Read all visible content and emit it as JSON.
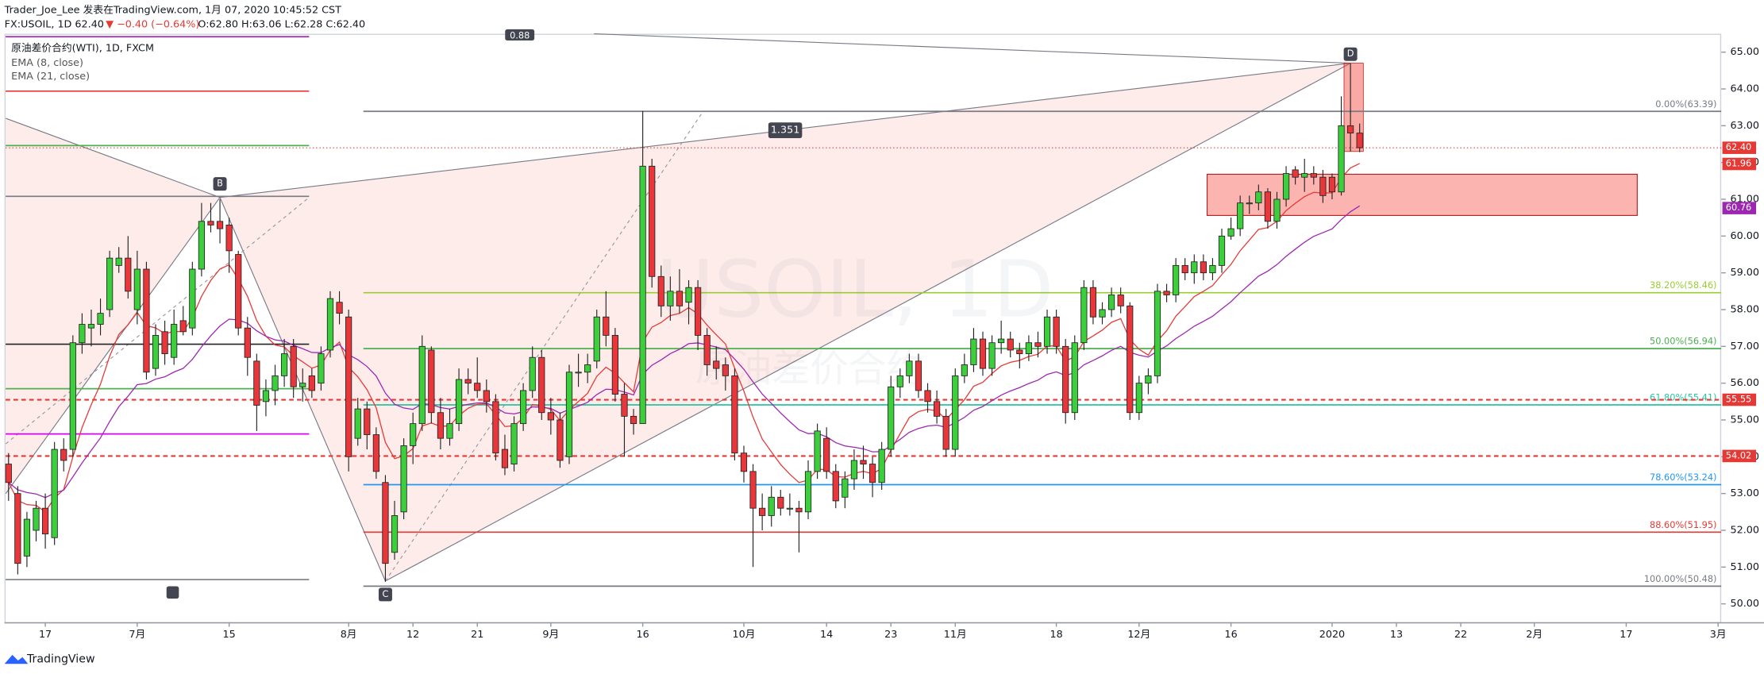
{
  "header": {
    "line1": "Trader_Joe_Lee 发表在TradingView.com, 1月 07, 2020 10:45:52 CST",
    "symbol": "FX:USOIL, 1D 62.40",
    "change": "▼ −0.40 (−0.64%)",
    "ohlc": "O:62.80 H:63.06 L:62.28 C:62.40"
  },
  "legend": [
    "原油差价合约(WTI), 1D, FXCM",
    "EMA (8, close)",
    "EMA (21, close)"
  ],
  "watermark": {
    "title": "USOIL, 1D",
    "subtitle": "原油差价合约"
  },
  "footer": "TradingView",
  "chart_data": {
    "type": "candlestick",
    "up_color": "#3ccf3c",
    "down_color": "#e8363a",
    "outline": "#222222",
    "candles": [
      [
        53.8,
        54.1,
        52.8,
        53.3
      ],
      [
        53.0,
        53.2,
        50.8,
        51.1
      ],
      [
        51.3,
        52.5,
        51.0,
        52.3
      ],
      [
        52.0,
        52.8,
        51.7,
        52.6
      ],
      [
        52.6,
        53.0,
        51.5,
        51.9
      ],
      [
        51.8,
        54.4,
        51.6,
        54.2
      ],
      [
        54.2,
        54.5,
        53.6,
        53.9
      ],
      [
        54.2,
        57.3,
        54.0,
        57.1
      ],
      [
        57.1,
        57.9,
        56.8,
        57.6
      ],
      [
        57.5,
        58.0,
        57.0,
        57.6
      ],
      [
        57.6,
        58.3,
        57.3,
        57.9
      ],
      [
        58.0,
        59.6,
        57.8,
        59.4
      ],
      [
        59.2,
        59.7,
        59.0,
        59.4
      ],
      [
        59.4,
        60.0,
        58.3,
        58.5
      ],
      [
        58.0,
        59.6,
        57.6,
        59.1
      ],
      [
        59.1,
        59.3,
        56.1,
        56.3
      ],
      [
        56.4,
        57.6,
        56.2,
        57.3
      ],
      [
        57.4,
        57.7,
        56.5,
        56.8
      ],
      [
        56.7,
        58.0,
        56.5,
        57.6
      ],
      [
        57.7,
        58.1,
        57.3,
        57.4
      ],
      [
        57.5,
        59.3,
        57.3,
        59.1
      ],
      [
        59.1,
        60.9,
        58.9,
        60.4
      ],
      [
        60.4,
        60.9,
        60.1,
        60.3
      ],
      [
        60.4,
        61.0,
        59.8,
        60.2
      ],
      [
        60.3,
        60.5,
        59.0,
        59.6
      ],
      [
        59.5,
        59.6,
        57.3,
        57.5
      ],
      [
        57.5,
        57.8,
        56.2,
        56.7
      ],
      [
        56.6,
        56.8,
        54.7,
        55.4
      ],
      [
        55.5,
        56.1,
        55.1,
        55.8
      ],
      [
        55.8,
        56.5,
        55.4,
        56.2
      ],
      [
        56.2,
        57.2,
        55.9,
        56.8
      ],
      [
        57.0,
        57.2,
        55.6,
        55.9
      ],
      [
        55.9,
        56.4,
        55.5,
        56.0
      ],
      [
        56.2,
        56.4,
        55.6,
        55.8
      ],
      [
        56.0,
        57.0,
        55.8,
        56.8
      ],
      [
        56.9,
        58.5,
        56.7,
        58.3
      ],
      [
        58.2,
        58.5,
        57.6,
        57.9
      ],
      [
        57.8,
        58.0,
        53.6,
        54.0
      ],
      [
        54.5,
        55.6,
        54.3,
        55.3
      ],
      [
        55.3,
        55.5,
        54.2,
        54.6
      ],
      [
        54.6,
        54.8,
        53.4,
        53.6
      ],
      [
        53.3,
        53.5,
        50.6,
        51.1
      ],
      [
        51.4,
        52.8,
        51.2,
        52.4
      ],
      [
        52.5,
        54.5,
        52.3,
        54.3
      ],
      [
        54.3,
        55.2,
        53.8,
        54.9
      ],
      [
        54.9,
        57.3,
        54.7,
        57.0
      ],
      [
        56.9,
        57.0,
        54.9,
        55.2
      ],
      [
        55.2,
        55.6,
        54.2,
        54.5
      ],
      [
        54.5,
        55.3,
        54.3,
        54.9
      ],
      [
        54.9,
        56.4,
        54.7,
        56.1
      ],
      [
        56.1,
        56.4,
        55.7,
        56.0
      ],
      [
        56.0,
        56.7,
        55.6,
        55.8
      ],
      [
        55.8,
        56.1,
        55.2,
        55.5
      ],
      [
        55.5,
        55.7,
        53.9,
        54.1
      ],
      [
        54.2,
        54.6,
        53.5,
        53.7
      ],
      [
        53.8,
        55.1,
        53.6,
        54.9
      ],
      [
        54.9,
        56.0,
        54.7,
        55.8
      ],
      [
        55.8,
        57.0,
        55.6,
        56.7
      ],
      [
        56.7,
        56.9,
        55.0,
        55.2
      ],
      [
        55.2,
        55.6,
        54.6,
        55.0
      ],
      [
        55.0,
        55.2,
        53.7,
        53.9
      ],
      [
        54.0,
        56.5,
        53.8,
        56.3
      ],
      [
        56.3,
        56.8,
        55.9,
        56.3
      ],
      [
        56.3,
        56.8,
        56.0,
        56.5
      ],
      [
        56.6,
        58.0,
        56.4,
        57.8
      ],
      [
        57.8,
        58.5,
        57.0,
        57.3
      ],
      [
        57.3,
        57.5,
        55.5,
        55.7
      ],
      [
        55.7,
        56.0,
        54.0,
        55.1
      ],
      [
        55.1,
        55.3,
        54.6,
        54.9
      ],
      [
        54.9,
        63.4,
        54.9,
        61.9
      ],
      [
        61.9,
        62.1,
        58.6,
        58.9
      ],
      [
        58.9,
        59.2,
        57.8,
        58.1
      ],
      [
        58.1,
        58.9,
        57.7,
        58.5
      ],
      [
        58.5,
        59.1,
        57.9,
        58.1
      ],
      [
        58.2,
        58.8,
        57.6,
        58.6
      ],
      [
        58.6,
        58.8,
        56.9,
        57.3
      ],
      [
        57.3,
        57.5,
        56.2,
        56.5
      ],
      [
        56.6,
        57.0,
        56.1,
        56.4
      ],
      [
        56.5,
        56.7,
        55.8,
        56.2
      ],
      [
        56.2,
        56.4,
        53.9,
        54.1
      ],
      [
        54.1,
        54.3,
        53.3,
        53.6
      ],
      [
        53.6,
        53.8,
        51.0,
        52.6
      ],
      [
        52.6,
        53.0,
        52.0,
        52.4
      ],
      [
        52.4,
        53.2,
        52.1,
        52.9
      ],
      [
        52.9,
        53.1,
        52.4,
        52.6
      ],
      [
        52.6,
        53.0,
        52.4,
        52.6
      ],
      [
        52.6,
        52.8,
        51.4,
        52.5
      ],
      [
        52.5,
        53.9,
        52.3,
        53.6
      ],
      [
        53.6,
        54.9,
        53.4,
        54.7
      ],
      [
        54.5,
        54.8,
        53.4,
        53.6
      ],
      [
        53.6,
        53.8,
        52.6,
        52.8
      ],
      [
        52.9,
        53.6,
        52.6,
        53.4
      ],
      [
        53.4,
        54.2,
        53.1,
        53.9
      ],
      [
        53.9,
        54.3,
        53.4,
        53.8
      ],
      [
        53.8,
        54.0,
        52.9,
        53.3
      ],
      [
        53.3,
        54.4,
        53.1,
        54.2
      ],
      [
        54.2,
        56.2,
        54.0,
        55.9
      ],
      [
        55.9,
        56.4,
        55.6,
        56.2
      ],
      [
        56.2,
        56.8,
        56.0,
        56.6
      ],
      [
        56.6,
        56.8,
        55.6,
        55.8
      ],
      [
        55.8,
        56.0,
        55.2,
        55.5
      ],
      [
        55.5,
        55.8,
        54.9,
        55.1
      ],
      [
        55.1,
        55.3,
        54.0,
        54.2
      ],
      [
        54.2,
        56.4,
        54.0,
        56.2
      ],
      [
        56.2,
        56.8,
        56.0,
        56.5
      ],
      [
        56.5,
        57.5,
        56.3,
        57.2
      ],
      [
        57.2,
        57.4,
        56.2,
        56.4
      ],
      [
        56.4,
        57.3,
        56.2,
        57.1
      ],
      [
        57.1,
        57.7,
        56.8,
        57.2
      ],
      [
        57.2,
        57.4,
        56.7,
        56.9
      ],
      [
        56.9,
        57.1,
        56.4,
        56.8
      ],
      [
        56.8,
        57.3,
        56.6,
        57.1
      ],
      [
        57.1,
        57.4,
        56.7,
        57.0
      ],
      [
        57.0,
        58.0,
        56.8,
        57.8
      ],
      [
        57.8,
        58.0,
        56.8,
        57.0
      ],
      [
        57.0,
        57.2,
        54.9,
        55.2
      ],
      [
        55.2,
        57.3,
        55.0,
        57.1
      ],
      [
        57.1,
        58.8,
        56.9,
        58.6
      ],
      [
        58.6,
        58.8,
        57.6,
        57.8
      ],
      [
        57.8,
        58.2,
        57.6,
        58.0
      ],
      [
        58.0,
        58.6,
        57.8,
        58.4
      ],
      [
        58.4,
        58.6,
        57.9,
        58.1
      ],
      [
        58.1,
        58.2,
        55.0,
        55.2
      ],
      [
        55.2,
        56.2,
        55.0,
        56.0
      ],
      [
        56.0,
        56.4,
        55.7,
        56.2
      ],
      [
        56.2,
        58.7,
        56.0,
        58.5
      ],
      [
        58.5,
        58.7,
        58.2,
        58.4
      ],
      [
        58.4,
        59.4,
        58.2,
        59.2
      ],
      [
        59.2,
        59.4,
        58.8,
        59.0
      ],
      [
        59.0,
        59.5,
        58.7,
        59.3
      ],
      [
        59.3,
        59.5,
        58.8,
        59.0
      ],
      [
        59.0,
        59.4,
        58.8,
        59.2
      ],
      [
        59.2,
        60.2,
        59.0,
        60.0
      ],
      [
        60.0,
        60.5,
        59.9,
        60.2
      ],
      [
        60.2,
        61.1,
        60.0,
        60.9
      ],
      [
        60.9,
        61.1,
        60.6,
        60.9
      ],
      [
        60.9,
        61.4,
        60.7,
        61.2
      ],
      [
        61.2,
        61.3,
        60.2,
        60.4
      ],
      [
        60.4,
        61.2,
        60.2,
        61.0
      ],
      [
        61.0,
        61.9,
        60.8,
        61.7
      ],
      [
        61.8,
        61.9,
        61.4,
        61.6
      ],
      [
        61.6,
        62.1,
        61.2,
        61.7
      ],
      [
        61.7,
        61.9,
        61.4,
        61.6
      ],
      [
        61.6,
        61.8,
        60.9,
        61.1
      ],
      [
        61.6,
        61.7,
        61.0,
        61.2
      ],
      [
        61.2,
        63.8,
        61.1,
        63.0
      ],
      [
        63.0,
        64.7,
        62.3,
        62.8
      ],
      [
        62.8,
        63.06,
        62.28,
        62.4
      ]
    ],
    "ema": [
      {
        "period": 8,
        "color": "#e53935"
      },
      {
        "period": 21,
        "color": "#9c27b0"
      }
    ],
    "ylim": [
      49.5,
      65.5
    ],
    "yticks": [
      {
        "value": 50,
        "label": "50.00"
      },
      {
        "value": 51,
        "label": "51.00"
      },
      {
        "value": 52,
        "label": "52.00"
      },
      {
        "value": 53,
        "label": "53.00"
      },
      {
        "value": 54,
        "label": "54.00"
      },
      {
        "value": 55,
        "label": "55.00"
      },
      {
        "value": 56,
        "label": "56.00"
      },
      {
        "value": 57,
        "label": "57.00"
      },
      {
        "value": 58,
        "label": "58.00"
      },
      {
        "value": 59,
        "label": "59.00"
      },
      {
        "value": 60,
        "label": "60.00"
      },
      {
        "value": 61,
        "label": "61.00"
      },
      {
        "value": 62,
        "label": "62.00"
      },
      {
        "value": 63,
        "label": "63.00"
      },
      {
        "value": 64,
        "label": "64.00"
      },
      {
        "value": 65,
        "label": "65.00"
      }
    ],
    "xticks": [
      {
        "index": 4,
        "label": "17"
      },
      {
        "index": 14,
        "label": "7月"
      },
      {
        "index": 24,
        "label": "15"
      },
      {
        "index": 37,
        "label": "8月"
      },
      {
        "index": 44,
        "label": "12"
      },
      {
        "index": 51,
        "label": "21"
      },
      {
        "index": 59,
        "label": "9月"
      },
      {
        "index": 69,
        "label": "16"
      },
      {
        "index": 80,
        "label": "10月"
      },
      {
        "index": 89,
        "label": "14"
      },
      {
        "index": 96,
        "label": "23"
      },
      {
        "index": 103,
        "label": "11月"
      },
      {
        "index": 114,
        "label": "18"
      },
      {
        "index": 123,
        "label": "12月"
      },
      {
        "index": 133,
        "label": "16"
      },
      {
        "index": 144,
        "label": "2020"
      },
      {
        "index": 151,
        "label": "13"
      },
      {
        "index": 158,
        "label": "22"
      },
      {
        "index": 166,
        "label": "2月"
      },
      {
        "index": 176,
        "label": "17"
      },
      {
        "index": 186,
        "label": "3月"
      }
    ],
    "fib_levels": [
      {
        "value": 63.39,
        "label": "0.00%(63.39)",
        "color": "#787b86"
      },
      {
        "value": 58.46,
        "label": "38.20%(58.46)",
        "color": "#9acd32"
      },
      {
        "value": 56.94,
        "label": "50.00%(56.94)",
        "color": "#4caf50"
      },
      {
        "value": 55.41,
        "label": "61.80%(55.41)",
        "color": "#26c6a0"
      },
      {
        "value": 53.24,
        "label": "78.60%(53.24)",
        "color": "#2196f3"
      },
      {
        "value": 51.95,
        "label": "88.60%(51.95)",
        "color": "#e53935"
      },
      {
        "value": 50.48,
        "label": "100.00%(50.48)",
        "color": "#787b86"
      }
    ],
    "dashed_levels": [
      {
        "value": 55.55,
        "label": "55.55",
        "color": "#e53935"
      },
      {
        "value": 54.02,
        "label": "54.02",
        "color": "#e53935"
      }
    ],
    "price_tags": [
      {
        "value": 62.4,
        "label": "62.40",
        "color": "#e53935"
      },
      {
        "value": 61.96,
        "label": "61.96",
        "color": "#e53935"
      },
      {
        "value": 60.76,
        "label": "60.76",
        "color": "#9c27b0"
      }
    ],
    "left_levels": [
      {
        "value": 65.42,
        "color": "#9c27b0"
      },
      {
        "value": 63.94,
        "color": "#e53935"
      },
      {
        "value": 62.46,
        "color": "#4caf50"
      },
      {
        "value": 61.08,
        "color": "#787b86"
      },
      {
        "value": 57.06,
        "color": "#222222"
      },
      {
        "value": 55.85,
        "color": "#4caf50"
      },
      {
        "value": 54.62,
        "color": "#d500f9"
      },
      {
        "value": 50.66,
        "color": "#787b86"
      }
    ],
    "pattern": {
      "X": [
        -0.3,
        63.2
      ],
      "A": [
        -0.3,
        53.0
      ],
      "B": [
        23,
        61.05
      ],
      "C": [
        41,
        50.62
      ],
      "D": [
        146,
        64.7
      ],
      "labels": [
        "B",
        "C",
        "D"
      ],
      "ratio": "1.351",
      "ratio_top": "0.88"
    },
    "zone": {
      "from": 130.4,
      "to": 177.2,
      "top": 61.68,
      "bottom": 60.56
    },
    "d_box": {
      "from": 145.3,
      "to": 147.4,
      "top": 64.7,
      "bottom": 62.3
    }
  }
}
